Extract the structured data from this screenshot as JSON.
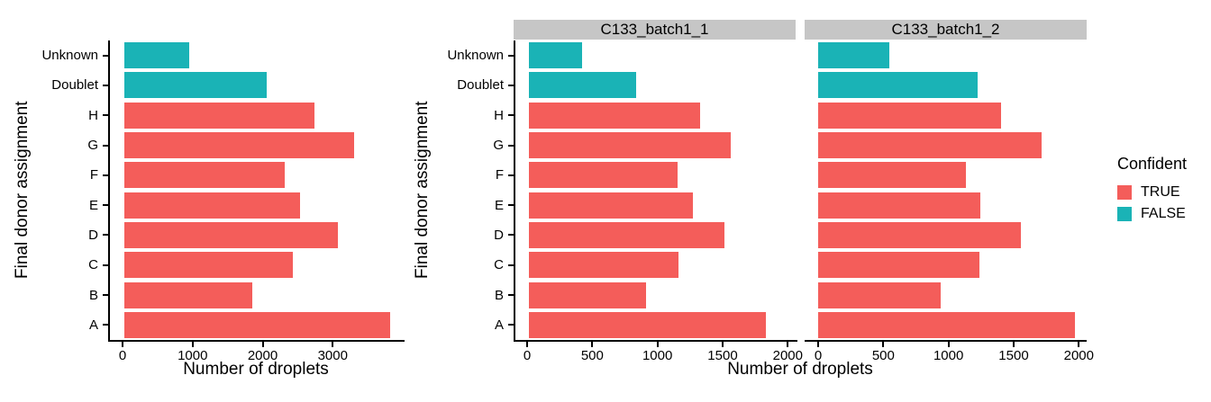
{
  "figure": {
    "background": "#FFFFFF"
  },
  "colors": {
    "confident_true": "#F45D5A",
    "confident_false": "#1AB3B6",
    "strip_bg": "#C6C6C6",
    "axis": "#000000",
    "text": "#000000"
  },
  "legend": {
    "title": "Confident",
    "items": [
      {
        "label": "TRUE",
        "color": "#F45D5A"
      },
      {
        "label": "FALSE",
        "color": "#1AB3B6"
      }
    ]
  },
  "chart_data": [
    {
      "type": "bar",
      "orientation": "horizontal",
      "title": "",
      "xlabel": "Number of droplets",
      "ylabel": "Final donor assignment",
      "categories": [
        "Unknown",
        "Doublet",
        "H",
        "G",
        "F",
        "E",
        "D",
        "C",
        "B",
        "A"
      ],
      "series": [
        {
          "name": "Number of droplets",
          "values": [
            930,
            2030,
            2720,
            3280,
            2290,
            2510,
            3050,
            2400,
            1830,
            3800
          ]
        }
      ],
      "confident": [
        false,
        false,
        true,
        true,
        true,
        true,
        true,
        true,
        true,
        true
      ],
      "xticks": [
        0,
        1000,
        2000,
        3000
      ],
      "xlim": [
        0,
        4000
      ],
      "grid": false,
      "legend_position": "none"
    },
    {
      "type": "bar",
      "orientation": "horizontal",
      "title": "",
      "xlabel": "Number of droplets",
      "ylabel": "Final donor assignment",
      "categories": [
        "Unknown",
        "Doublet",
        "H",
        "G",
        "F",
        "E",
        "D",
        "C",
        "B",
        "A"
      ],
      "facets": [
        {
          "label": "C133_batch1_1",
          "values": [
            405,
            820,
            1315,
            1545,
            1140,
            1260,
            1500,
            1150,
            900,
            1815
          ]
        },
        {
          "label": "C133_batch1_2",
          "values": [
            545,
            1225,
            1400,
            1715,
            1135,
            1245,
            1555,
            1235,
            940,
            1970
          ]
        }
      ],
      "confident": [
        false,
        false,
        true,
        true,
        true,
        true,
        true,
        true,
        true,
        true
      ],
      "xticks": [
        0,
        500,
        1000,
        1500,
        2000
      ],
      "xlim": [
        0,
        2060
      ],
      "grid": false,
      "legend_position": "right",
      "legend_title": "Confident"
    }
  ]
}
